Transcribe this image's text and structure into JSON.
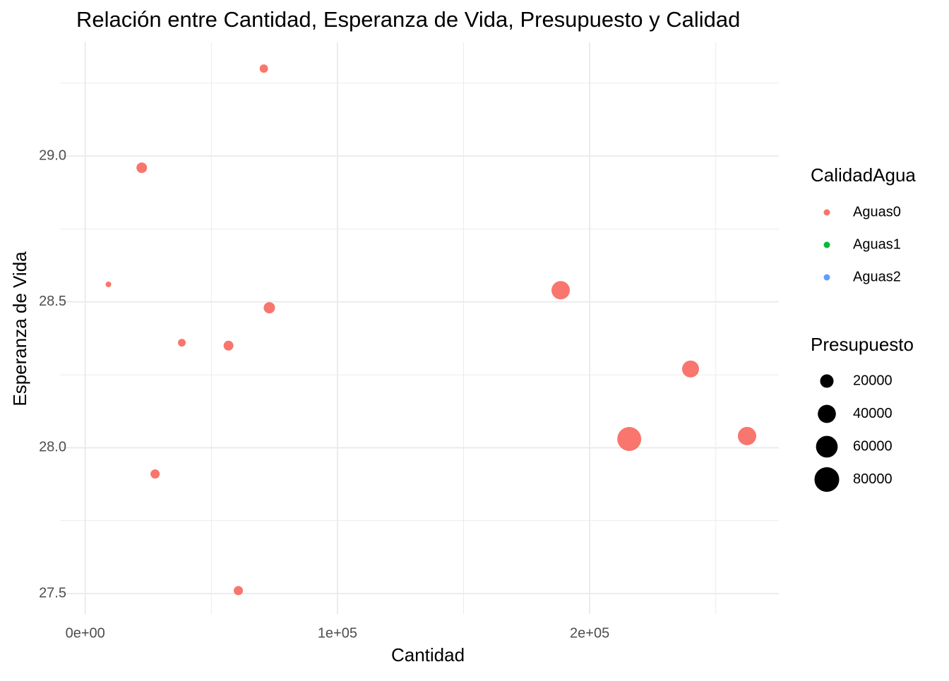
{
  "chart_data": {
    "type": "scatter",
    "title": "Relación entre Cantidad, Esperanza de Vida, Presupuesto y Calidad",
    "x_label": "Cantidad",
    "y_label": "Esperanza de Vida",
    "xlim": [
      -10000,
      275000
    ],
    "ylim": [
      27.43,
      29.39
    ],
    "xticks": [
      {
        "value": 0,
        "label": "0e+00"
      },
      {
        "value": 100000,
        "label": "1e+05"
      },
      {
        "value": 200000,
        "label": "2e+05"
      }
    ],
    "yticks": [
      {
        "value": 27.5,
        "label": "27.5"
      },
      {
        "value": 28,
        "label": "28.0"
      },
      {
        "value": 28.5,
        "label": "28.5"
      },
      {
        "value": 29,
        "label": "29.0"
      }
    ],
    "grid": true,
    "color_legend_title": "CalidadAgua",
    "series": [
      {
        "name": "Aguas0",
        "color": "#F8766D",
        "x": [
          70800,
          22400,
          9200,
          73000,
          38300,
          56800,
          27700,
          60700,
          188500,
          240000,
          215700,
          262400
        ],
        "values": [
          29.3,
          28.96,
          28.56,
          28.48,
          28.36,
          28.35,
          27.91,
          27.51,
          28.54,
          28.27,
          28.03,
          28.04
        ],
        "sizes": [
          11000,
          17500,
          5000,
          20000,
          9400,
          15300,
          13200,
          13200,
          52800,
          45000,
          90000,
          52800
        ]
      },
      {
        "name": "Aguas1",
        "color": "#00BA38",
        "x": [],
        "values": [],
        "sizes": []
      },
      {
        "name": "Aguas2",
        "color": "#619CFF",
        "x": [],
        "values": [],
        "sizes": []
      }
    ],
    "size_legend": {
      "title": "Presupuesto",
      "values": [
        20000,
        40000,
        60000,
        80000
      ]
    }
  }
}
